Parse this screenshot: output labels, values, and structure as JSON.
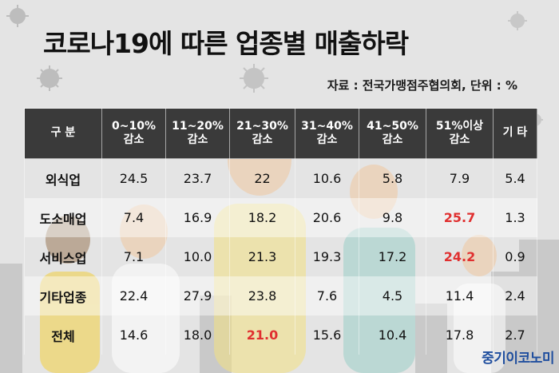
{
  "title": "코로나19에 따른 업종별 매출하락",
  "source": "자료 : 전국가맹점주협의회, 단위 : %",
  "brand": "중기이코노미",
  "table": {
    "headers": [
      {
        "line1": "구 분",
        "line2": ""
      },
      {
        "line1": "0~10%",
        "line2": "감소"
      },
      {
        "line1": "11~20%",
        "line2": "감소"
      },
      {
        "line1": "21~30%",
        "line2": "감소"
      },
      {
        "line1": "31~40%",
        "line2": "감소"
      },
      {
        "line1": "41~50%",
        "line2": "감소"
      },
      {
        "line1": "51%이상",
        "line2": "감소"
      },
      {
        "line1": "기 타",
        "line2": ""
      }
    ],
    "rows": [
      {
        "label": "외식업",
        "values": [
          "24.5",
          "23.7",
          "22",
          "10.6",
          "5.8",
          "7.9",
          "5.4"
        ],
        "highlight": []
      },
      {
        "label": "도소매업",
        "values": [
          "7.4",
          "16.9",
          "18.2",
          "20.6",
          "9.8",
          "25.7",
          "1.3"
        ],
        "highlight": [
          5
        ]
      },
      {
        "label": "서비스업",
        "values": [
          "7.1",
          "10.0",
          "21.3",
          "19.3",
          "17.2",
          "24.2",
          "0.9"
        ],
        "highlight": [
          5
        ]
      },
      {
        "label": "기타업종",
        "values": [
          "22.4",
          "27.9",
          "23.8",
          "7.6",
          "4.5",
          "11.4",
          "2.4"
        ],
        "highlight": []
      },
      {
        "label": "전체",
        "values": [
          "14.6",
          "18.0",
          "21.0",
          "15.6",
          "10.4",
          "17.8",
          "2.7"
        ],
        "highlight": [
          2
        ]
      }
    ]
  },
  "colors": {
    "background": "#e4e4e4",
    "header_bg": "#3a3a3a",
    "highlight": "#e03030",
    "brand": "#1f4e9e"
  }
}
